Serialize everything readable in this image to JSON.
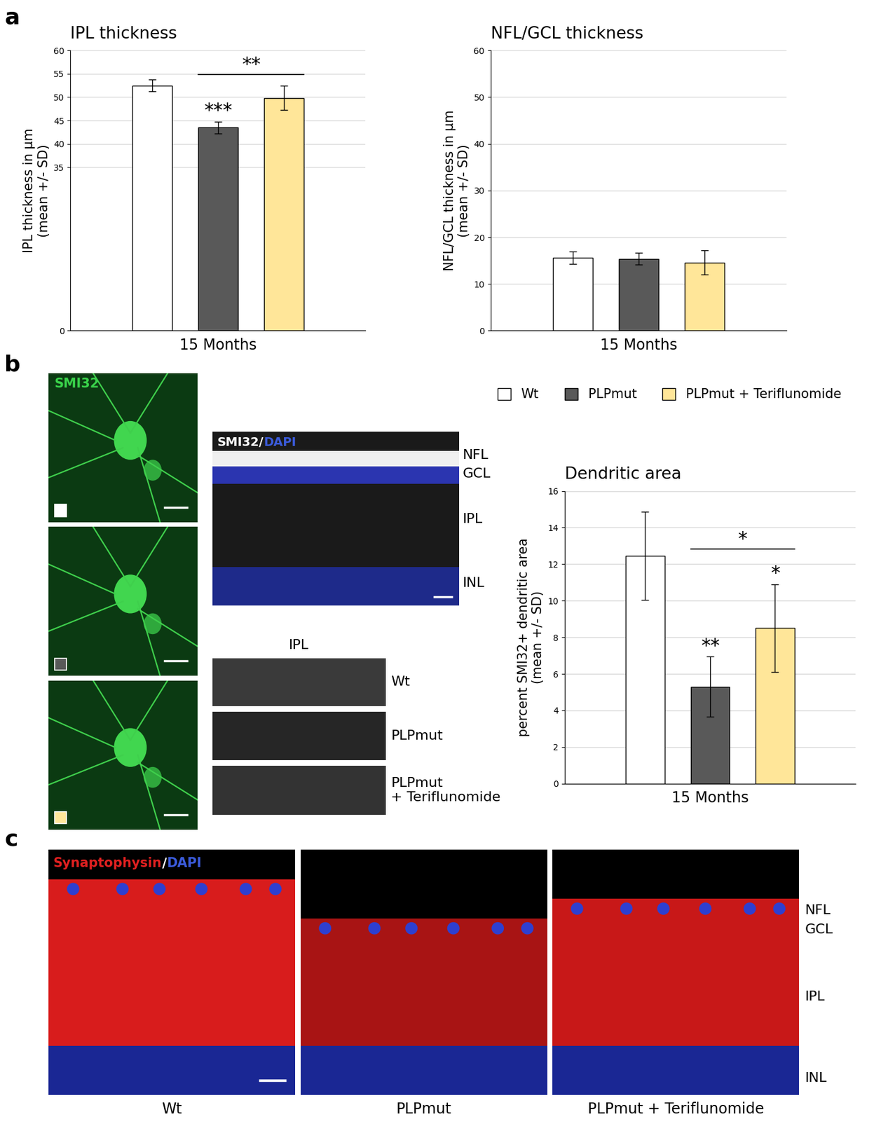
{
  "panels": [
    "a",
    "b",
    "c"
  ],
  "chart_data": [
    {
      "type": "bar",
      "title": "IPL thickness",
      "y_label": "IPL thickness in µm\n(mean +/- SD)",
      "categories": [
        "15 Months"
      ],
      "series": [
        {
          "name": "Wt",
          "color": "#ffffff",
          "values": [
            52.5
          ],
          "errors": [
            1.3
          ]
        },
        {
          "name": "PLPmut",
          "color": "#595959",
          "values": [
            43.5
          ],
          "errors": [
            1.3
          ]
        },
        {
          "name": "PLPmut + Teriflunomide",
          "color": "#ffe699",
          "values": [
            49.8
          ],
          "errors": [
            2.6
          ]
        }
      ],
      "ylim": [
        0,
        60
      ],
      "yticks": [
        0,
        35,
        40,
        45,
        50,
        55,
        60
      ],
      "grid": true,
      "annotations": [
        {
          "text": "***",
          "series": "PLPmut"
        },
        {
          "text": "**",
          "from": "PLPmut",
          "to": "PLPmut + Teriflunomide"
        }
      ]
    },
    {
      "type": "bar",
      "title": "NFL/GCL thickness",
      "y_label": "NFL/GCL thickness in µm\n(mean +/- SD)",
      "categories": [
        "15 Months"
      ],
      "series": [
        {
          "name": "Wt",
          "color": "#ffffff",
          "values": [
            15.6
          ],
          "errors": [
            1.3
          ]
        },
        {
          "name": "PLPmut",
          "color": "#595959",
          "values": [
            15.4
          ],
          "errors": [
            1.3
          ]
        },
        {
          "name": "PLPmut + Teriflunomide",
          "color": "#ffe699",
          "values": [
            14.6
          ],
          "errors": [
            2.6
          ]
        }
      ],
      "ylim": [
        0,
        60
      ],
      "yticks": [
        0,
        10,
        20,
        30,
        40,
        50,
        60
      ],
      "grid": true,
      "annotations": []
    },
    {
      "type": "bar",
      "title": "Dendritic area",
      "y_label": "percent SMI32+ dendritic area\n(mean +/- SD)",
      "categories": [
        "15 Months"
      ],
      "series": [
        {
          "name": "Wt",
          "color": "#ffffff",
          "values": [
            12.45
          ],
          "errors": [
            2.4
          ]
        },
        {
          "name": "PLPmut",
          "color": "#595959",
          "values": [
            5.3
          ],
          "errors": [
            1.65
          ]
        },
        {
          "name": "PLPmut + Teriflunomide",
          "color": "#ffe699",
          "values": [
            8.5
          ],
          "errors": [
            2.4
          ]
        }
      ],
      "ylim": [
        0,
        16
      ],
      "yticks": [
        0,
        2,
        4,
        6,
        8,
        10,
        12,
        14,
        16
      ],
      "grid": true,
      "legend": "lower center",
      "annotations": [
        {
          "text": "**",
          "series": "PLPmut"
        },
        {
          "text": "*",
          "series": "PLPmut + Teriflunomide"
        },
        {
          "text": "*",
          "from": "PLPmut",
          "to": "PLPmut + Teriflunomide"
        }
      ]
    }
  ],
  "images": {
    "smi32_label": "SMI32",
    "section_title": [
      "SMI32/",
      "DAPI"
    ],
    "section_layers": [
      "NFL",
      "GCL",
      "IPL",
      "INL"
    ],
    "strips_title": "IPL",
    "strip_labels": [
      "Wt",
      "PLPmut",
      "PLPmut\n+ Teriflunomide"
    ],
    "synapse_title": [
      "Synaptophysin",
      "/",
      "DAPI"
    ],
    "synapse_layers": [
      "NFL",
      "GCL",
      "IPL",
      "INL"
    ],
    "synapse_captions": [
      "Wt",
      "PLPmut",
      "PLPmut + Teriflunomide"
    ]
  }
}
